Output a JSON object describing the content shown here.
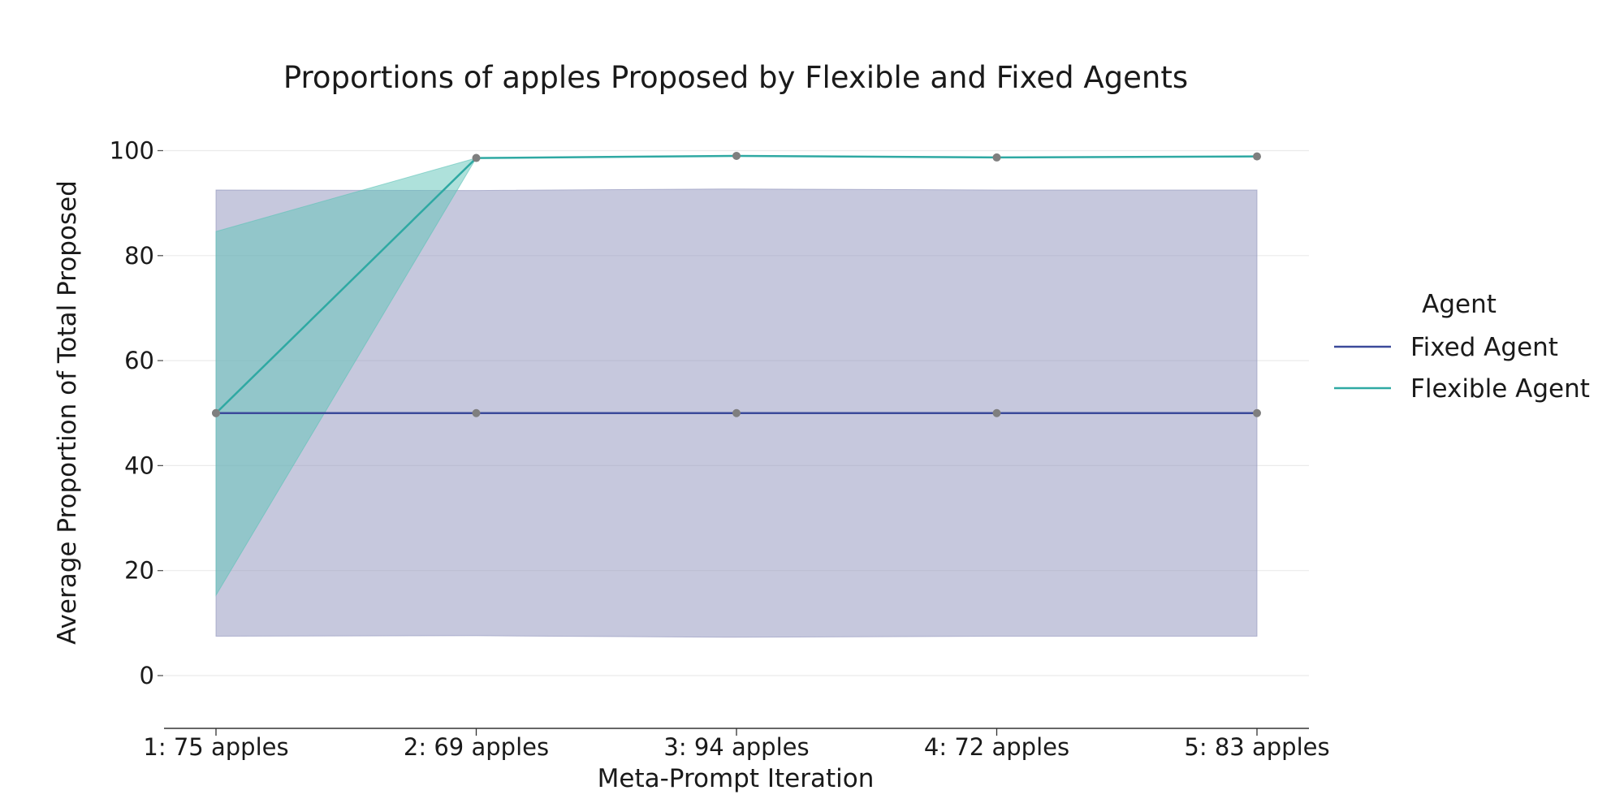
{
  "chart_data": {
    "type": "line",
    "title": "Proportions of apples Proposed by Flexible and Fixed Agents",
    "xlabel": "Meta-Prompt Iteration",
    "ylabel": "Average Proportion of Total Proposed",
    "categories": [
      "1: 75 apples",
      "2: 69 apples",
      "3: 94 apples",
      "4: 72 apples",
      "5: 83 apples"
    ],
    "y_ticks": [
      "0",
      "20",
      "40",
      "60",
      "80",
      "100"
    ],
    "ylim": [
      -10,
      105
    ],
    "grid": true,
    "legend": {
      "title": "Agent",
      "placement": "right"
    },
    "series": [
      {
        "name": "Fixed Agent",
        "color": "#3b4a9a",
        "band_color": "#8d91bb",
        "values": [
          50,
          50,
          50,
          50,
          50
        ],
        "lower": [
          7.5,
          7.6,
          7.3,
          7.5,
          7.5
        ],
        "upper": [
          92.5,
          92.4,
          92.7,
          92.5,
          92.5
        ]
      },
      {
        "name": "Flexible Agent",
        "color": "#2fa9a3",
        "band_color": "#5dc3b8",
        "values": [
          50,
          98.6,
          99.0,
          98.7,
          98.9
        ],
        "lower": [
          15.3,
          98.6,
          99.0,
          98.7,
          98.9
        ],
        "upper": [
          84.6,
          98.6,
          99.0,
          98.7,
          98.9
        ]
      }
    ],
    "marker_color": "#7f7f7f"
  }
}
